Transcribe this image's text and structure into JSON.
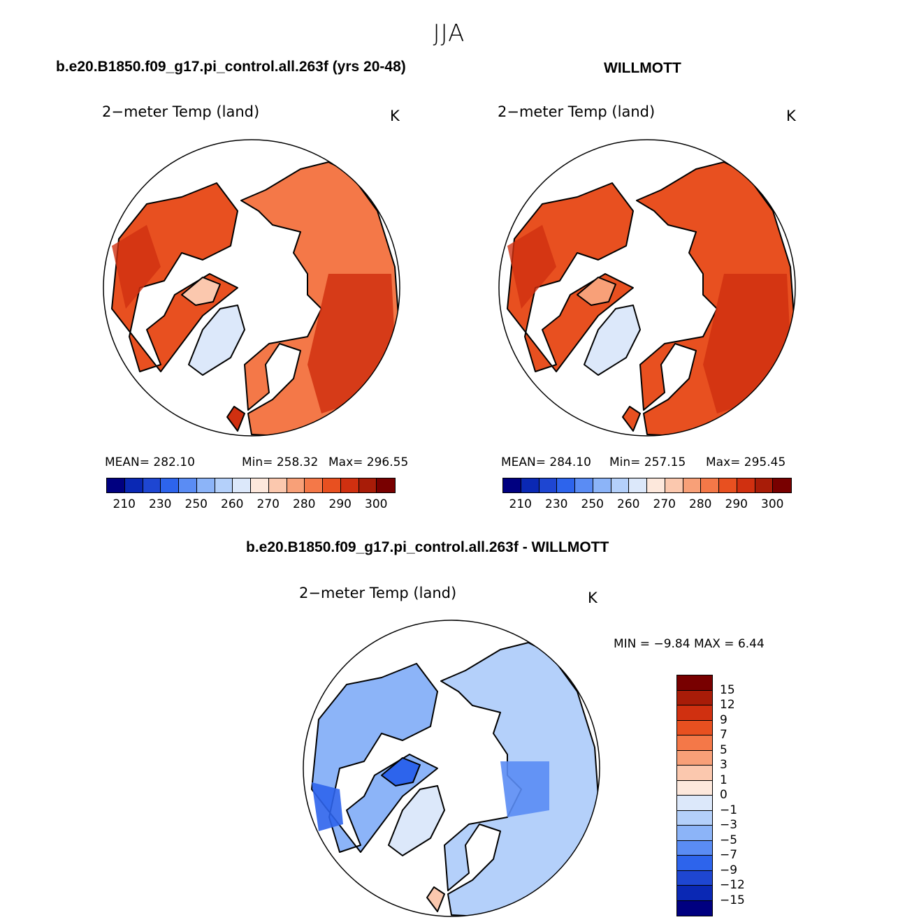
{
  "season": "JJA",
  "colors": {
    "land_scale": [
      "#000080",
      "#0a28b4",
      "#1e46d2",
      "#2d64ec",
      "#5a8cf4",
      "#8cb4f8",
      "#b4d0fa",
      "#dce8fa",
      "#fde8dc",
      "#fbc8ae",
      "#f8a078",
      "#f47848",
      "#e85020",
      "#d03010",
      "#a81c08",
      "#780000"
    ],
    "diff_scale": [
      "#000080",
      "#0a28b4",
      "#1e46d2",
      "#2d64ec",
      "#5a8cf4",
      "#8cb4f8",
      "#b4d0fa",
      "#dce8fa",
      "#fde8dc",
      "#fbc8ae",
      "#f8a078",
      "#f47848",
      "#e85020",
      "#d03010",
      "#a81c08",
      "#780000"
    ],
    "coast": "#000000"
  },
  "panels": {
    "model": {
      "title": "b.e20.B1850.f09_g17.pi_control.all.263f (yrs 20-48)",
      "label": "2−meter Temp (land)",
      "units": "K",
      "mean": "MEAN=  282.10",
      "min": "Min=  258.32",
      "max": "Max=  296.55",
      "ticks": [
        "210",
        "230",
        "250",
        "260",
        "270",
        "280",
        "290",
        "300"
      ]
    },
    "obs": {
      "title": "WILLMOTT",
      "label": "2−meter Temp (land)",
      "units": "K",
      "mean": "MEAN=  284.10",
      "min": "Min=  257.15",
      "max": "Max=  295.45",
      "ticks": [
        "210",
        "230",
        "250",
        "260",
        "270",
        "280",
        "290",
        "300"
      ]
    },
    "diff": {
      "title": "b.e20.B1850.f09_g17.pi_control.all.263f - WILLMOTT",
      "label": "2−meter Temp (land)",
      "units": "K",
      "minmax": "MIN =   −9.84  MAX =     6.44",
      "ticks": [
        "15",
        "12",
        "9",
        "7",
        "5",
        "3",
        "1",
        "0",
        "−1",
        "−3",
        "−5",
        "−7",
        "−9",
        "−12",
        "−15"
      ]
    }
  },
  "chart_data": [
    {
      "type": "heatmap",
      "title": "b.e20.B1850.f09_g17.pi_control.all.263f (yrs 20-48)",
      "subtitle": "2−meter Temp (land)",
      "units": "K",
      "projection": "north polar stereographic",
      "mean": 282.1,
      "min": 258.32,
      "max": 296.55,
      "colorbar_levels": [
        210,
        230,
        250,
        260,
        270,
        280,
        290,
        300
      ]
    },
    {
      "type": "heatmap",
      "title": "WILLMOTT",
      "subtitle": "2−meter Temp (land)",
      "units": "K",
      "projection": "north polar stereographic",
      "mean": 284.1,
      "min": 257.15,
      "max": 295.45,
      "colorbar_levels": [
        210,
        230,
        250,
        260,
        270,
        280,
        290,
        300
      ]
    },
    {
      "type": "heatmap",
      "title": "b.e20.B1850.f09_g17.pi_control.all.263f - WILLMOTT",
      "subtitle": "2−meter Temp (land)",
      "units": "K",
      "projection": "north polar stereographic",
      "min": -9.84,
      "max": 6.44,
      "colorbar_levels": [
        -15,
        -12,
        -9,
        -7,
        -5,
        -3,
        -1,
        0,
        1,
        3,
        5,
        7,
        9,
        12,
        15
      ]
    }
  ]
}
